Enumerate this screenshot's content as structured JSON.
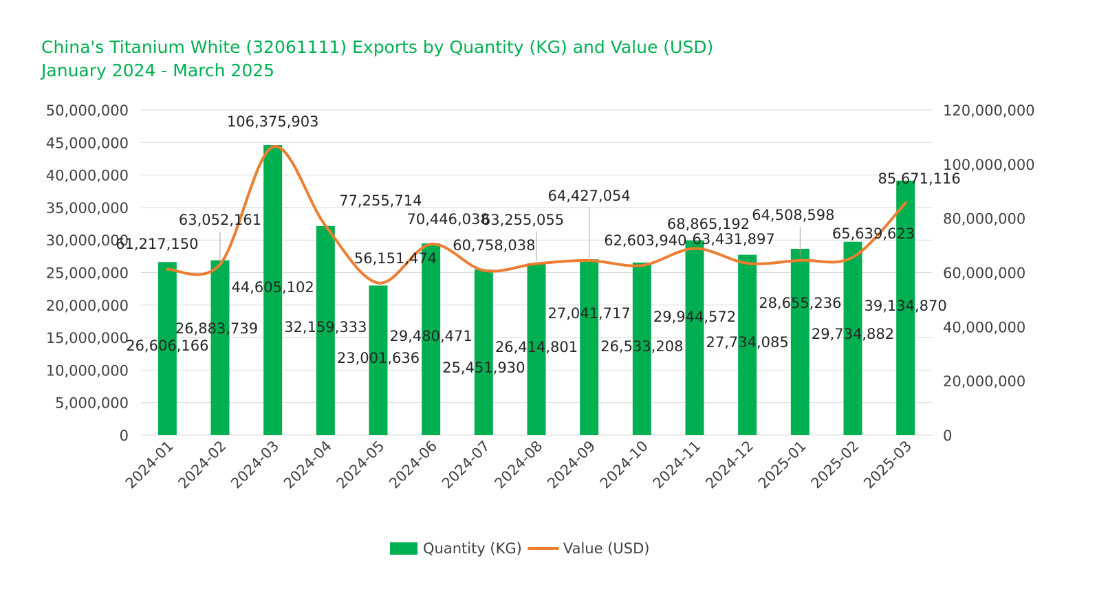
{
  "colors": {
    "quantity": "#00B050",
    "value": "#ED7D31",
    "title": "#00B050",
    "grid": "#D9D9D9"
  },
  "chart_data": {
    "type": "bar",
    "title": "China's Titanium White (32061111) Exports by Quantity (KG) and Value (USD)",
    "subtitle": "January 2024 - March 2025",
    "categories": [
      "2024-01",
      "2024-02",
      "2024-03",
      "2024-04",
      "2024-05",
      "2024-06",
      "2024-07",
      "2024-08",
      "2024-09",
      "2024-10",
      "2024-11",
      "2024-12",
      "2025-01",
      "2025-02",
      "2025-03"
    ],
    "series": [
      {
        "name": "Quantity (KG)",
        "type": "bar",
        "axis": "left",
        "values": [
          26606166,
          26883739,
          44605102,
          32159333,
          23001636,
          29480471,
          25451930,
          26414801,
          27041717,
          26533208,
          29944572,
          27734085,
          28655236,
          29734882,
          39134870
        ],
        "labels": [
          "26,606,166",
          "26,883,739",
          "44,605,102",
          "32,159,333",
          "23,001,636",
          "29,480,471",
          "25,451,930",
          "26,414,801",
          "27,041,717",
          "26,533,208",
          "29,944,572",
          "27,734,085",
          "28,655,236",
          "29,734,882",
          "39,134,870"
        ]
      },
      {
        "name": "Value (USD)",
        "type": "line",
        "axis": "right",
        "smooth": true,
        "values": [
          61217150,
          63052161,
          106375903,
          77255714,
          56151474,
          70446038,
          60758038,
          63255055,
          64427054,
          62603940,
          68865192,
          63431897,
          64508598,
          65639623,
          85671116
        ],
        "labels": [
          "61,217,150",
          "63,052,161",
          "106,375,903",
          "77,255,714",
          "56,151,474",
          "70,446,038",
          "60,758,038",
          "63,255,055",
          "64,427,054",
          "62,603,940",
          "68,865,192",
          "63,431,897",
          "64,508,598",
          "65,639,623",
          "85,671,116"
        ]
      }
    ],
    "y_left": {
      "min": 0,
      "max": 50000000,
      "step": 5000000,
      "tick_labels": [
        "0",
        "5,000,000",
        "10,000,000",
        "15,000,000",
        "20,000,000",
        "25,000,000",
        "30,000,000",
        "35,000,000",
        "40,000,000",
        "45,000,000",
        "50,000,000"
      ]
    },
    "y_right": {
      "min": 0,
      "max": 120000000,
      "step": 20000000,
      "tick_labels": [
        "0",
        "20,000,000",
        "40,000,000",
        "60,000,000",
        "80,000,000",
        "100,000,000",
        "120,000,000"
      ]
    },
    "grid": true,
    "legend_position": "bottom"
  }
}
